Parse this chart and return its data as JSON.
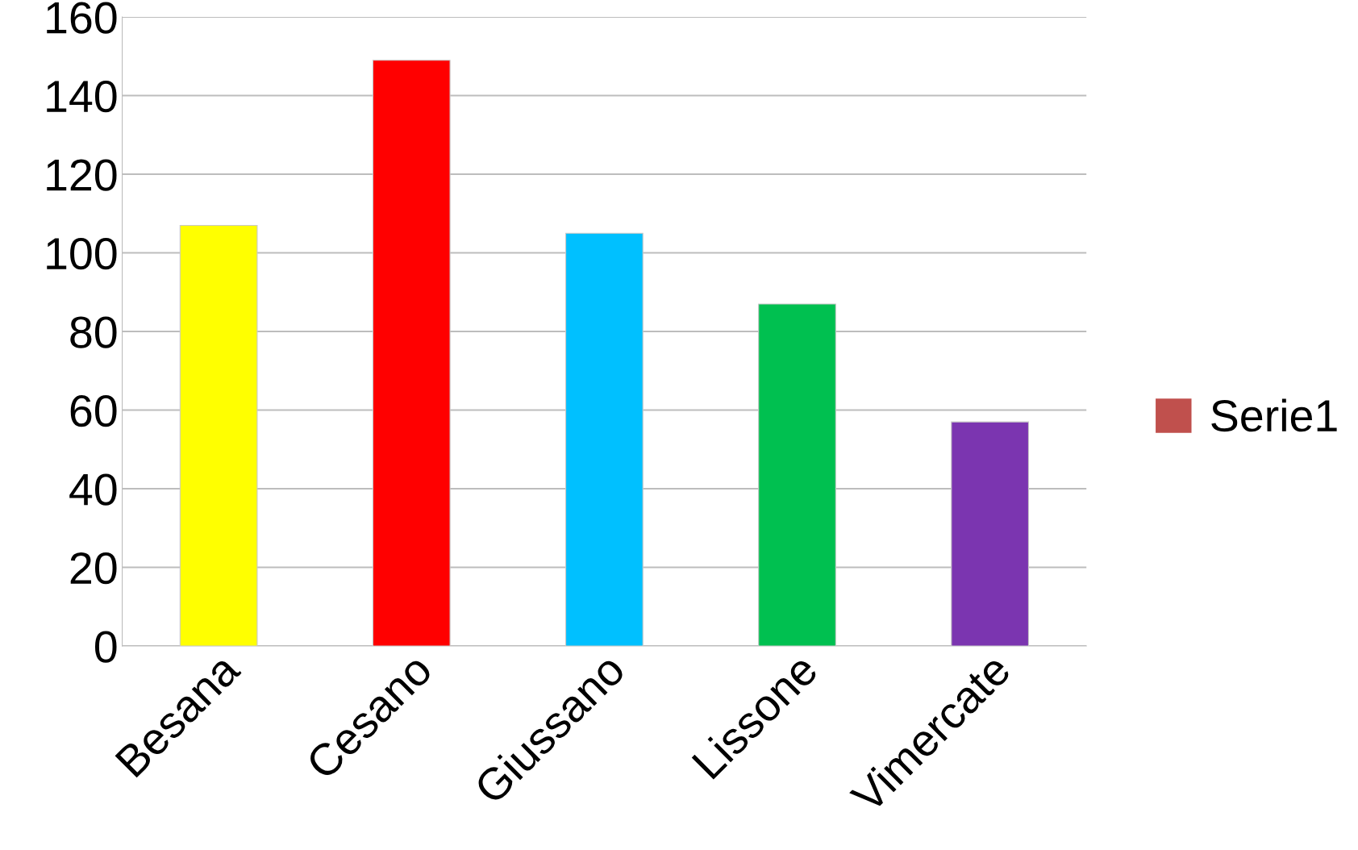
{
  "chart_data": {
    "type": "bar",
    "categories": [
      "Besana",
      "Cesano",
      "Giussano",
      "Lissone",
      "Vimercate"
    ],
    "series": [
      {
        "name": "Serie1",
        "color": "#c0504d",
        "values": [
          107,
          149,
          105,
          87,
          57
        ],
        "colors": [
          "#ffff00",
          "#ff0000",
          "#00c0ff",
          "#00c050",
          "#7b35b0"
        ]
      }
    ],
    "ylim": [
      0,
      160
    ],
    "yticks": [
      0,
      20,
      40,
      60,
      80,
      100,
      120,
      140,
      160
    ],
    "grid": "y",
    "legend": "right"
  }
}
